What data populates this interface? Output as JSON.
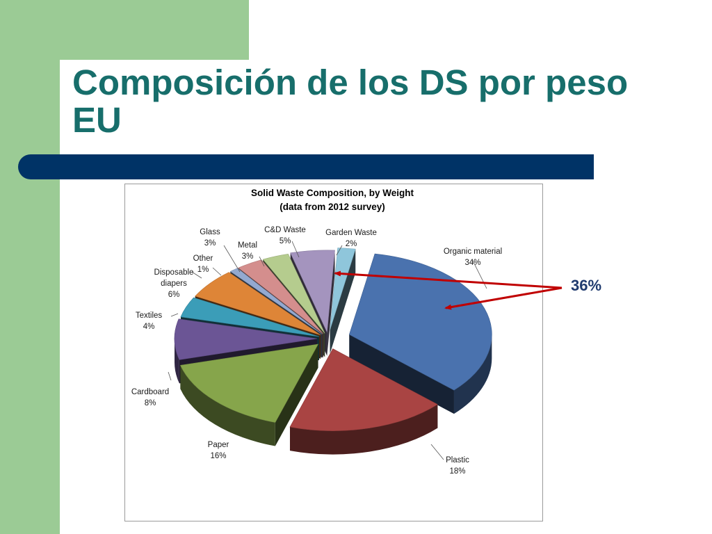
{
  "slide": {
    "title_line1": "Composición de los DS por peso",
    "title_line2": "EU",
    "callout": "36%"
  },
  "colors": {
    "green_band": "#9BCB95",
    "title": "#176E6B",
    "blue_bar": "#003366",
    "arrow": "#C00000"
  },
  "chart_data": {
    "type": "pie",
    "title_line1": "Solid Waste Composition, by Weight",
    "title_line2": "(data from 2012 survey)",
    "exploded": true,
    "three_d": true,
    "slices": [
      {
        "label": "Organic material",
        "value": 34,
        "display": "34%",
        "color": "#4A72AE"
      },
      {
        "label": "Plastic",
        "value": 18,
        "display": "18%",
        "color": "#A94443"
      },
      {
        "label": "Paper",
        "value": 16,
        "display": "16%",
        "color": "#86A54B"
      },
      {
        "label": "Cardboard",
        "value": 8,
        "display": "8%",
        "color": "#6B5595"
      },
      {
        "label": "Textiles",
        "value": 4,
        "display": "4%",
        "color": "#3B9DB8"
      },
      {
        "label": "Disposable diapers",
        "value": 6,
        "display": "6%",
        "color": "#DE8537"
      },
      {
        "label": "Other",
        "value": 1,
        "display": "1%",
        "color": "#93A9D0"
      },
      {
        "label": "Glass",
        "value": 3,
        "display": "3%",
        "color": "#D48E8D"
      },
      {
        "label": "Metal",
        "value": 3,
        "display": "3%",
        "color": "#B5CC8E"
      },
      {
        "label": "C&D Waste",
        "value": 5,
        "display": "5%",
        "color": "#A494BE"
      },
      {
        "label": "Garden Waste",
        "value": 2,
        "display": "2%",
        "color": "#8FC6DB"
      }
    ],
    "highlight": {
      "label": "36%",
      "slices": [
        "Organic material",
        "Garden Waste"
      ]
    }
  }
}
